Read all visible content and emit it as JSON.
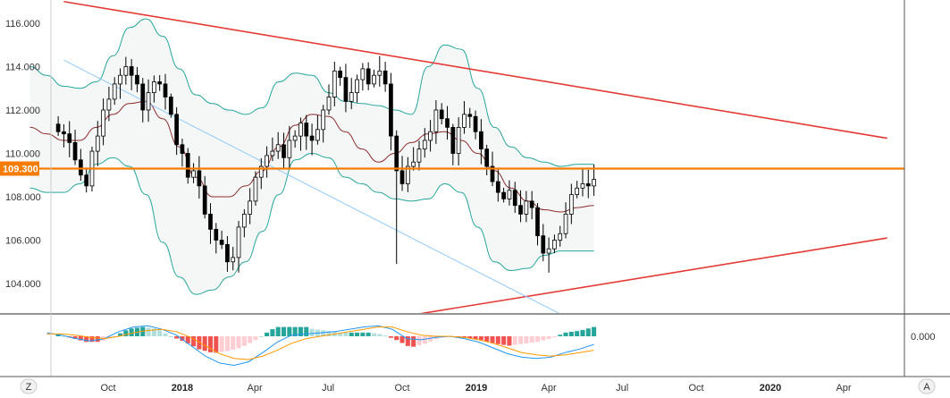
{
  "chart_data": {
    "type": "candlestick",
    "interval": "weekly",
    "price_axis": {
      "range": [
        102.6,
        116.9
      ],
      "ticks": [
        "116.000",
        "114.000",
        "112.000",
        "110.000",
        "108.000",
        "106.000",
        "104.000"
      ],
      "tick_values": [
        116,
        114,
        112,
        110,
        108,
        106,
        104
      ]
    },
    "time_axis": {
      "labels": [
        "Oct",
        "2018",
        "Apr",
        "Jul",
        "Oct",
        "2019",
        "Apr",
        "Jul",
        "Oct",
        "2020",
        "Apr"
      ],
      "bold": [
        false,
        true,
        false,
        false,
        false,
        true,
        false,
        false,
        false,
        true,
        false
      ],
      "dates": [
        "2017-10-01",
        "2018-01-01",
        "2018-04-01",
        "2018-07-01",
        "2018-10-01",
        "2019-01-01",
        "2019-04-01",
        "2019-07-01",
        "2019-10-01",
        "2020-01-01",
        "2020-04-01"
      ]
    },
    "horizontal_level": {
      "value": 109.3,
      "label": "109.300",
      "color": "#f57c00"
    },
    "trendlines": [
      {
        "name": "upper",
        "color": "#e53935",
        "from": [
          "2017-08-07",
          117.0
        ],
        "to": [
          "2020-05-25",
          110.7
        ]
      },
      {
        "name": "lower",
        "color": "#e53935",
        "from": [
          "2018-10-22",
          102.6
        ],
        "to": [
          "2020-05-25",
          106.1
        ]
      },
      {
        "name": "diagonal",
        "color": "#90caf9",
        "from": [
          "2017-08-07",
          114.3
        ],
        "to": [
          "2019-04-15",
          102.6
        ]
      }
    ],
    "candles_weekly_close": {
      "start": "2017-07-31",
      "close": [
        111.0,
        110.9,
        110.5,
        109.7,
        109.0,
        108.5,
        110.1,
        110.8,
        112.0,
        112.5,
        113.2,
        113.6,
        114.0,
        113.6,
        113.2,
        112.0,
        112.8,
        113.3,
        113.2,
        112.6,
        111.8,
        110.4,
        110.0,
        108.9,
        109.2,
        108.5,
        107.2,
        106.5,
        106.0,
        105.8,
        105.0,
        105.2,
        106.6,
        107.2,
        107.8,
        108.9,
        109.4,
        109.9,
        110.1,
        110.4,
        109.8,
        110.6,
        110.8,
        111.4,
        110.8,
        110.6,
        111.1,
        112.0,
        112.6,
        113.8,
        113.5,
        112.4,
        112.8,
        113.4,
        113.9,
        113.2,
        113.6,
        113.8,
        113.2,
        110.8,
        109.2,
        108.6,
        109.4,
        109.6,
        110.2,
        110.6,
        111.0,
        112.0,
        111.6,
        111.2,
        110.0,
        111.2,
        111.8,
        111.7,
        111.0,
        110.2,
        109.4,
        108.7,
        108.2,
        107.9,
        108.3,
        107.6,
        107.2,
        107.8,
        107.5,
        106.2,
        105.4,
        105.6,
        106.0,
        106.3,
        107.2,
        108.1,
        108.4,
        108.6,
        108.5,
        108.8
      ],
      "min_low": 104.5,
      "max_high": 114.6
    },
    "bollinger_bands": {
      "upper": [
        114.0,
        113.6,
        113.1,
        113.0,
        113.3,
        114.5,
        115.8,
        116.2,
        115.4,
        113.9,
        112.7,
        112.3,
        112.0,
        111.8,
        112.1,
        113.3,
        113.7,
        113.6,
        112.8,
        112.4,
        112.3,
        112.2,
        112.0,
        111.8,
        114.0,
        115.0,
        114.8,
        113.0,
        111.2,
        110.3,
        109.8,
        109.6,
        109.4,
        109.5,
        109.5
      ],
      "middle": [
        111.2,
        110.9,
        110.6,
        110.6,
        111.2,
        111.8,
        112.3,
        112.4,
        111.6,
        110.3,
        108.9,
        108.0,
        108.0,
        108.5,
        109.2,
        110.3,
        111.3,
        111.8,
        111.7,
        111.0,
        110.2,
        109.6,
        110.0,
        110.5,
        110.9,
        111.0,
        110.6,
        110.0,
        109.2,
        108.4,
        107.8,
        107.4,
        107.3,
        107.5,
        107.6
      ],
      "lower": [
        108.4,
        108.2,
        108.2,
        108.6,
        109.5,
        109.8,
        109.4,
        108.1,
        105.9,
        104.3,
        103.5,
        103.7,
        104.3,
        105.0,
        106.4,
        108.1,
        109.7,
        110.0,
        109.8,
        108.9,
        108.6,
        108.2,
        107.9,
        107.8,
        107.9,
        108.6,
        108.2,
        106.6,
        105.0,
        104.6,
        104.7,
        105.3,
        105.5,
        105.5,
        105.5
      ]
    },
    "macd": {
      "zero_label": "0.000",
      "macd_line": [
        0.3,
        0.1,
        -0.2,
        -0.4,
        -0.2,
        0.4,
        0.8,
        0.9,
        0.6,
        0.1,
        -0.8,
        -1.7,
        -2.3,
        -2.5,
        -2.2,
        -1.4,
        -0.5,
        0.1,
        0.2,
        0.3,
        0.4,
        0.6,
        0.8,
        0.9,
        0.6,
        -0.2,
        -0.3,
        -0.1,
        0.0,
        -0.2,
        -0.5,
        -1.0,
        -1.5,
        -1.8,
        -1.9,
        -1.8,
        -1.4,
        -1.1,
        -0.7
      ],
      "signal_line": [
        0.2,
        0.2,
        0.1,
        -0.1,
        -0.2,
        0.0,
        0.3,
        0.5,
        0.6,
        0.4,
        -0.1,
        -0.8,
        -1.5,
        -1.9,
        -2.0,
        -1.7,
        -1.2,
        -0.6,
        -0.2,
        0.0,
        0.2,
        0.4,
        0.6,
        0.8,
        0.8,
        0.4,
        0.1,
        0.0,
        0.0,
        -0.1,
        -0.3,
        -0.6,
        -1.0,
        -1.4,
        -1.6,
        -1.7,
        -1.6,
        -1.4,
        -1.2
      ],
      "histogram_max": 0.8
    },
    "colors": {
      "bull": "#ffffff",
      "bear": "#000000",
      "candle_outline": "#000000",
      "bb_upper_lower": "#26a69a",
      "bb_middle": "#8e2d2d",
      "bb_fill": "#f5f7f7",
      "macd": "#2196f3",
      "signal": "#ff9800",
      "hist_pos": "#26a69a",
      "hist_pos_weak": "#b2dfdb",
      "hist_neg": "#ef5350",
      "hist_neg_weak": "#ffcdd2"
    }
  },
  "ui": {
    "bottom_left_button": "Z",
    "bottom_right_button": "A"
  }
}
